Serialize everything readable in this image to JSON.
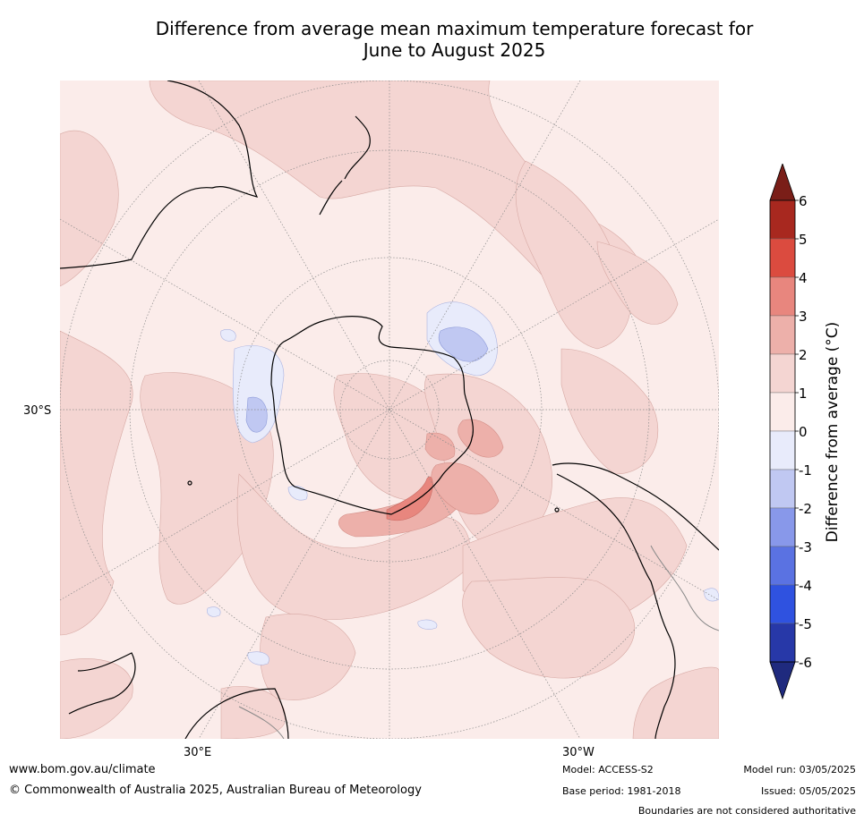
{
  "title_line1": "Difference from average mean maximum temperature forecast for",
  "title_line2": "June to August 2025",
  "map": {
    "lat_label": "30°S",
    "lon_labels": [
      "30°E",
      "30°W"
    ]
  },
  "colorbar": {
    "label": "Difference from average (°C)",
    "ticks": [
      "6",
      "5",
      "4",
      "3",
      "2",
      "1",
      "0",
      "-1",
      "-2",
      "-3",
      "-4",
      "-5",
      "-6"
    ],
    "bins": [
      {
        "from": 5,
        "to": 6,
        "color": "#a8281f"
      },
      {
        "from": 4,
        "to": 5,
        "color": "#db4b3f"
      },
      {
        "from": 3,
        "to": 4,
        "color": "#e8867e"
      },
      {
        "from": 2,
        "to": 3,
        "color": "#edb0aa"
      },
      {
        "from": 1,
        "to": 2,
        "color": "#f4d5d2"
      },
      {
        "from": 0,
        "to": 1,
        "color": "#fbecea"
      },
      {
        "from": -1,
        "to": 0,
        "color": "#e8ebfb"
      },
      {
        "from": -2,
        "to": -1,
        "color": "#c0c8f2"
      },
      {
        "from": -3,
        "to": -2,
        "color": "#8898ea"
      },
      {
        "from": -4,
        "to": -3,
        "color": "#5a72e2"
      },
      {
        "from": -5,
        "to": -4,
        "color": "#2f52e0"
      },
      {
        "from": -6,
        "to": -5,
        "color": "#2738a8"
      }
    ],
    "over_color": "#7a1e18",
    "under_color": "#1f2a7e"
  },
  "footer": {
    "website": "www.bom.gov.au/climate",
    "copyright": "© Commonwealth of Australia 2025, Australian Bureau of Meteorology",
    "model": "Model: ACCESS-S2",
    "base_period": "Base period: 1981-2018",
    "model_run": "Model run: 03/05/2025",
    "issued": "Issued: 05/05/2025",
    "disclaimer": "Boundaries are not considered authoritative"
  }
}
